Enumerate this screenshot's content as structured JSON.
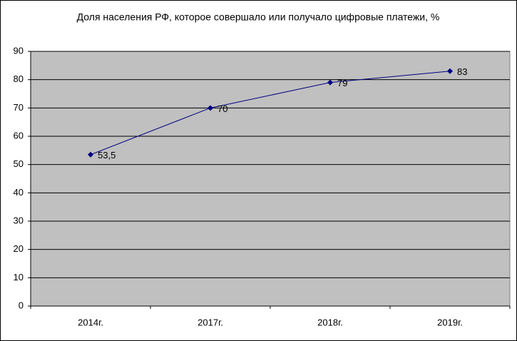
{
  "chart_data": {
    "type": "line",
    "title": "Доля населения РФ, которое совершало или получало цифровые платежи, %",
    "categories": [
      "2014г.",
      "2017г.",
      "2018г.",
      "2019г."
    ],
    "values": [
      53.5,
      70,
      79,
      83
    ],
    "value_labels": [
      "53,5",
      "70",
      "79",
      "83"
    ],
    "color": "#000080",
    "ylim": [
      0,
      90
    ],
    "yticks": [
      0,
      10,
      20,
      30,
      40,
      50,
      60,
      70,
      80,
      90
    ],
    "grid": true
  }
}
